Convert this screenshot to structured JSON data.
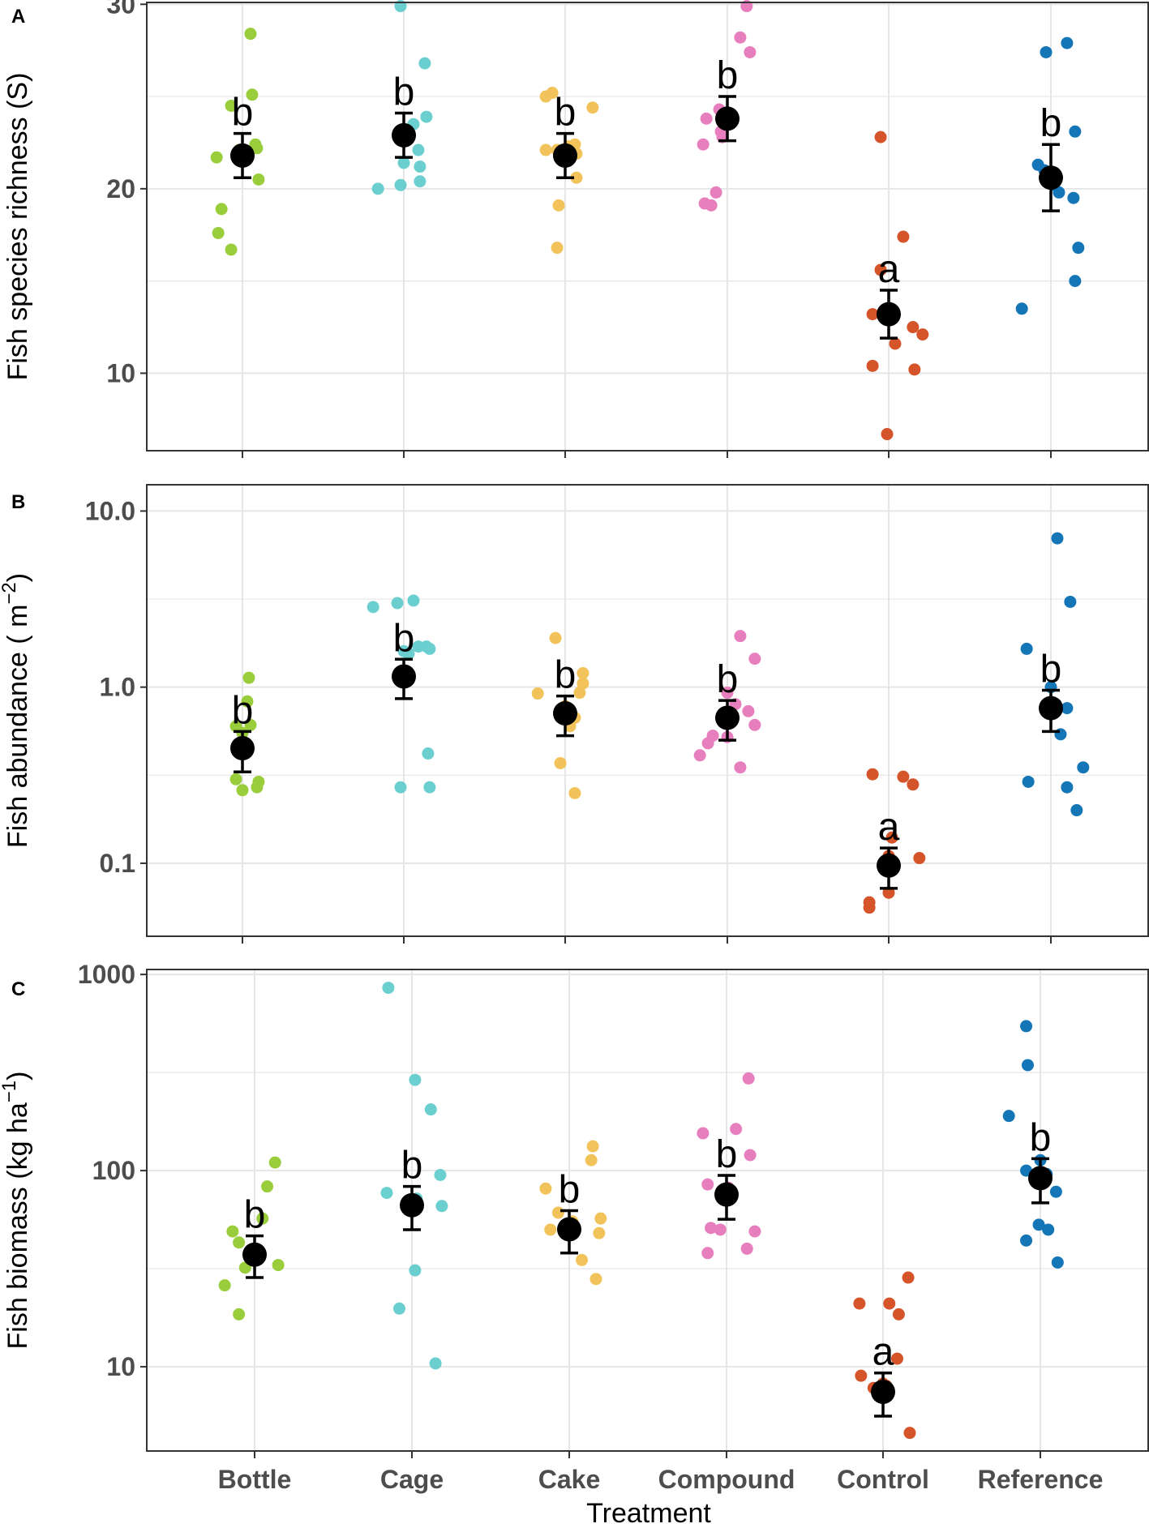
{
  "colors": {
    "Bottle": "#9acd3c",
    "Cage": "#6bcfd0",
    "Cake": "#f2c35a",
    "Compound": "#e77ebd",
    "Control": "#d5542a",
    "Reference": "#1475b7",
    "mean": "#000000",
    "grid": "#e6e6e6",
    "frame": "#333333"
  },
  "xlabel": "Treatment",
  "chart_data": [
    {
      "type": "scatter",
      "panel": "A",
      "ylabel": "Fish species richness (S)",
      "yscale": "linear",
      "ylim": [
        5.8,
        30.1
      ],
      "yticks": [
        10,
        20,
        30
      ],
      "ytick_labels": [
        "10",
        "20",
        "30"
      ],
      "grid": true,
      "categories": [
        "Bottle",
        "Cage",
        "Cake",
        "Compound",
        "Control",
        "Reference"
      ],
      "groups": [
        {
          "name": "Bottle",
          "sig": "b",
          "mean": 21.8,
          "se_low": 20.6,
          "se_high": 23.0,
          "points": [
            [
              -0.16,
              21.7
            ],
            [
              -0.15,
              17.6
            ],
            [
              -0.13,
              18.9
            ],
            [
              -0.07,
              16.7
            ],
            [
              -0.07,
              24.5
            ],
            [
              0.05,
              28.4
            ],
            [
              0.06,
              25.1
            ],
            [
              0.08,
              22.4
            ],
            [
              0.09,
              22.2
            ],
            [
              0.1,
              20.5
            ],
            [
              -0.02,
              22.1
            ]
          ]
        },
        {
          "name": "Cage",
          "sig": "b",
          "mean": 22.9,
          "se_low": 21.7,
          "se_high": 24.1,
          "points": [
            [
              -0.16,
              20.0
            ],
            [
              -0.02,
              29.9
            ],
            [
              -0.02,
              20.2
            ],
            [
              0.0,
              21.4
            ],
            [
              0.09,
              22.1
            ],
            [
              0.1,
              21.2
            ],
            [
              0.1,
              20.4
            ],
            [
              0.13,
              26.8
            ],
            [
              0.14,
              23.9
            ],
            [
              0.06,
              23.5
            ]
          ]
        },
        {
          "name": "Cake",
          "sig": "b",
          "mean": 21.8,
          "se_low": 20.6,
          "se_high": 23.0,
          "points": [
            [
              -0.12,
              22.1
            ],
            [
              -0.12,
              25.0
            ],
            [
              -0.08,
              25.2
            ],
            [
              -0.05,
              22.1
            ],
            [
              -0.04,
              19.1
            ],
            [
              -0.05,
              16.8
            ],
            [
              0.06,
              22.4
            ],
            [
              0.07,
              21.9
            ],
            [
              0.07,
              20.6
            ],
            [
              0.17,
              24.4
            ],
            [
              0.02,
              22.3
            ]
          ]
        },
        {
          "name": "Compound",
          "sig": "b",
          "mean": 23.8,
          "se_low": 22.6,
          "se_high": 25.0,
          "points": [
            [
              -0.15,
              22.4
            ],
            [
              -0.14,
              19.2
            ],
            [
              -0.13,
              23.8
            ],
            [
              -0.1,
              19.1
            ],
            [
              -0.07,
              19.8
            ],
            [
              -0.05,
              24.3
            ],
            [
              -0.03,
              22.8
            ],
            [
              0.08,
              28.2
            ],
            [
              0.12,
              29.9
            ],
            [
              0.14,
              27.4
            ],
            [
              -0.04,
              23.1
            ]
          ]
        },
        {
          "name": "Control",
          "sig": "a",
          "mean": 13.2,
          "se_low": 11.9,
          "se_high": 14.5,
          "points": [
            [
              -0.1,
              13.2
            ],
            [
              -0.1,
              10.4
            ],
            [
              -0.05,
              15.6
            ],
            [
              -0.05,
              22.8
            ],
            [
              -0.01,
              6.7
            ],
            [
              0.04,
              11.6
            ],
            [
              0.09,
              17.4
            ],
            [
              0.15,
              12.5
            ],
            [
              0.16,
              10.2
            ],
            [
              0.21,
              12.1
            ],
            [
              0.0,
              13.0
            ]
          ]
        },
        {
          "name": "Reference",
          "sig": "b",
          "mean": 20.6,
          "se_low": 18.8,
          "se_high": 22.4,
          "points": [
            [
              -0.18,
              13.5
            ],
            [
              -0.08,
              21.3
            ],
            [
              -0.03,
              27.4
            ],
            [
              0.02,
              20.2
            ],
            [
              0.05,
              19.8
            ],
            [
              0.1,
              27.9
            ],
            [
              0.14,
              19.5
            ],
            [
              0.15,
              15.0
            ],
            [
              0.15,
              23.1
            ],
            [
              0.17,
              16.8
            ],
            [
              -0.04,
              21.0
            ]
          ]
        }
      ]
    },
    {
      "type": "scatter",
      "panel": "B",
      "ylabel": "Fish abundance ( m",
      "ylabel_sup": "−2",
      "ylabel_tail": ")",
      "yscale": "log10",
      "ylim": [
        0.0385,
        14.1
      ],
      "yticks": [
        0.1,
        1.0,
        10.0
      ],
      "ytick_labels": [
        "0.1",
        "1.0",
        "10.0"
      ],
      "grid": true,
      "categories": [
        "Bottle",
        "Cage",
        "Cake",
        "Compound",
        "Control",
        "Reference"
      ],
      "groups": [
        {
          "name": "Bottle",
          "sig": "b",
          "mean": 0.45,
          "se_low": 0.33,
          "se_high": 0.56,
          "points": [
            [
              -0.04,
              0.6
            ],
            [
              -0.04,
              0.3
            ],
            [
              0.0,
              0.26
            ],
            [
              0.03,
              0.83
            ],
            [
              0.04,
              1.13
            ],
            [
              0.05,
              0.61
            ],
            [
              0.09,
              0.27
            ],
            [
              0.1,
              0.29
            ],
            [
              0.0,
              0.55
            ]
          ]
        },
        {
          "name": "Cage",
          "sig": "b",
          "mean": 1.15,
          "se_low": 0.86,
          "se_high": 1.44,
          "points": [
            [
              -0.19,
              2.85
            ],
            [
              -0.04,
              3.0
            ],
            [
              -0.02,
              0.27
            ],
            [
              0.0,
              1.6
            ],
            [
              0.06,
              3.1
            ],
            [
              0.09,
              1.7
            ],
            [
              0.14,
              1.7
            ],
            [
              0.16,
              1.65
            ],
            [
              0.16,
              0.27
            ],
            [
              0.15,
              0.42
            ],
            [
              0.03,
              1.55
            ]
          ]
        },
        {
          "name": "Cake",
          "sig": "b",
          "mean": 0.71,
          "se_low": 0.53,
          "se_high": 0.89,
          "points": [
            [
              -0.17,
              0.92
            ],
            [
              -0.03,
              0.37
            ],
            [
              -0.06,
              1.9
            ],
            [
              0.03,
              0.6
            ],
            [
              0.06,
              0.25
            ],
            [
              0.06,
              0.67
            ],
            [
              0.09,
              0.93
            ],
            [
              0.11,
              1.05
            ],
            [
              0.11,
              1.2
            ],
            [
              0.0,
              0.78
            ]
          ]
        },
        {
          "name": "Compound",
          "sig": "b",
          "mean": 0.67,
          "se_low": 0.5,
          "se_high": 0.84,
          "points": [
            [
              -0.17,
              0.41
            ],
            [
              -0.12,
              0.48
            ],
            [
              -0.09,
              0.53
            ],
            [
              0.0,
              0.93
            ],
            [
              0.0,
              0.52
            ],
            [
              0.08,
              1.95
            ],
            [
              0.08,
              0.35
            ],
            [
              0.13,
              0.73
            ],
            [
              0.17,
              0.61
            ],
            [
              0.17,
              1.45
            ],
            [
              0.05,
              0.8
            ]
          ]
        },
        {
          "name": "Control",
          "sig": "a",
          "mean": 0.097,
          "se_low": 0.072,
          "se_high": 0.122,
          "points": [
            [
              -0.12,
              0.06
            ],
            [
              -0.12,
              0.056
            ],
            [
              -0.1,
              0.32
            ],
            [
              0.0,
              0.068
            ],
            [
              0.0,
              0.11
            ],
            [
              0.02,
              0.14
            ],
            [
              0.09,
              0.31
            ],
            [
              0.15,
              0.28
            ],
            [
              0.19,
              0.107
            ],
            [
              0.0,
              0.09
            ]
          ]
        },
        {
          "name": "Reference",
          "sig": "b",
          "mean": 0.76,
          "se_low": 0.56,
          "se_high": 0.96,
          "points": [
            [
              -0.15,
              1.65
            ],
            [
              -0.14,
              0.29
            ],
            [
              0.0,
              1.0
            ],
            [
              0.04,
              7.0
            ],
            [
              0.06,
              0.54
            ],
            [
              0.1,
              0.76
            ],
            [
              0.1,
              0.27
            ],
            [
              0.12,
              3.05
            ],
            [
              0.16,
              0.2
            ],
            [
              0.2,
              0.35
            ],
            [
              0.03,
              0.8
            ]
          ]
        }
      ]
    },
    {
      "type": "scatter",
      "panel": "C",
      "ylabel": "Fish biomass (kg ha",
      "ylabel_sup": "−1",
      "ylabel_tail": ")",
      "yscale": "log10",
      "ylim": [
        3.72,
        1060
      ],
      "yticks": [
        10,
        100,
        1000
      ],
      "ytick_labels": [
        "10",
        "100",
        "1000"
      ],
      "grid": true,
      "categories": [
        "Bottle",
        "Cage",
        "Cake",
        "Compound",
        "Control",
        "Reference"
      ],
      "groups": [
        {
          "name": "Bottle",
          "sig": "b",
          "mean": 37.3,
          "se_low": 28.5,
          "se_high": 46.5,
          "points": [
            [
              -0.19,
              26.0
            ],
            [
              -0.14,
              49.0
            ],
            [
              -0.1,
              18.5
            ],
            [
              -0.1,
              43.0
            ],
            [
              -0.06,
              32.0
            ],
            [
              0.05,
              57.0
            ],
            [
              0.08,
              83.0
            ],
            [
              0.13,
              110.0
            ],
            [
              0.15,
              33.0
            ],
            [
              0.0,
              40.0
            ]
          ]
        },
        {
          "name": "Cage",
          "sig": "b",
          "mean": 66.6,
          "se_low": 50.0,
          "se_high": 83.0,
          "points": [
            [
              -0.16,
              77.0
            ],
            [
              -0.15,
              855.0
            ],
            [
              -0.08,
              19.8
            ],
            [
              0.02,
              290.0
            ],
            [
              0.02,
              31.0
            ],
            [
              0.12,
              205.0
            ],
            [
              0.15,
              10.4
            ],
            [
              0.18,
              95.0
            ],
            [
              0.19,
              66.0
            ],
            [
              0.03,
              72.0
            ]
          ]
        },
        {
          "name": "Cake",
          "sig": "b",
          "mean": 50.2,
          "se_low": 38.0,
          "se_high": 62.5,
          "points": [
            [
              -0.15,
              81.0
            ],
            [
              -0.12,
              50.0
            ],
            [
              -0.07,
              61.0
            ],
            [
              0.08,
              35.0
            ],
            [
              0.14,
              113.0
            ],
            [
              0.15,
              133.0
            ],
            [
              0.17,
              28.0
            ],
            [
              0.19,
              48.0
            ],
            [
              0.2,
              57.0
            ],
            [
              0.02,
              55.0
            ]
          ]
        },
        {
          "name": "Compound",
          "sig": "b",
          "mean": 75.5,
          "se_low": 56.5,
          "se_high": 94.5,
          "points": [
            [
              -0.15,
              155.0
            ],
            [
              -0.12,
              38.0
            ],
            [
              -0.12,
              85.0
            ],
            [
              -0.1,
              51.0
            ],
            [
              -0.04,
              50.0
            ],
            [
              0.06,
              163.0
            ],
            [
              0.13,
              40.0
            ],
            [
              0.14,
              295.0
            ],
            [
              0.15,
              120.0
            ],
            [
              0.18,
              49.0
            ],
            [
              0.01,
              82.0
            ]
          ]
        },
        {
          "name": "Control",
          "sig": "a",
          "mean": 7.45,
          "se_low": 5.6,
          "se_high": 9.3,
          "points": [
            [
              -0.15,
              21.0
            ],
            [
              -0.14,
              9.0
            ],
            [
              -0.06,
              7.8
            ],
            [
              0.0,
              8.2
            ],
            [
              0.04,
              21.0
            ],
            [
              0.09,
              11.0
            ],
            [
              0.1,
              18.5
            ],
            [
              0.16,
              28.5
            ],
            [
              0.17,
              4.6
            ],
            [
              0.02,
              8.0
            ]
          ]
        },
        {
          "name": "Reference",
          "sig": "b",
          "mean": 91.5,
          "se_low": 68.5,
          "se_high": 115.0,
          "points": [
            [
              -0.2,
              190.0
            ],
            [
              -0.09,
              100.0
            ],
            [
              -0.09,
              44.0
            ],
            [
              -0.09,
              545.0
            ],
            [
              -0.08,
              345.0
            ],
            [
              0.0,
              113.0
            ],
            [
              -0.01,
              53.0
            ],
            [
              0.05,
              50.0
            ],
            [
              0.1,
              78.0
            ],
            [
              0.11,
              34.0
            ],
            [
              0.04,
              96.0
            ]
          ]
        }
      ]
    }
  ]
}
